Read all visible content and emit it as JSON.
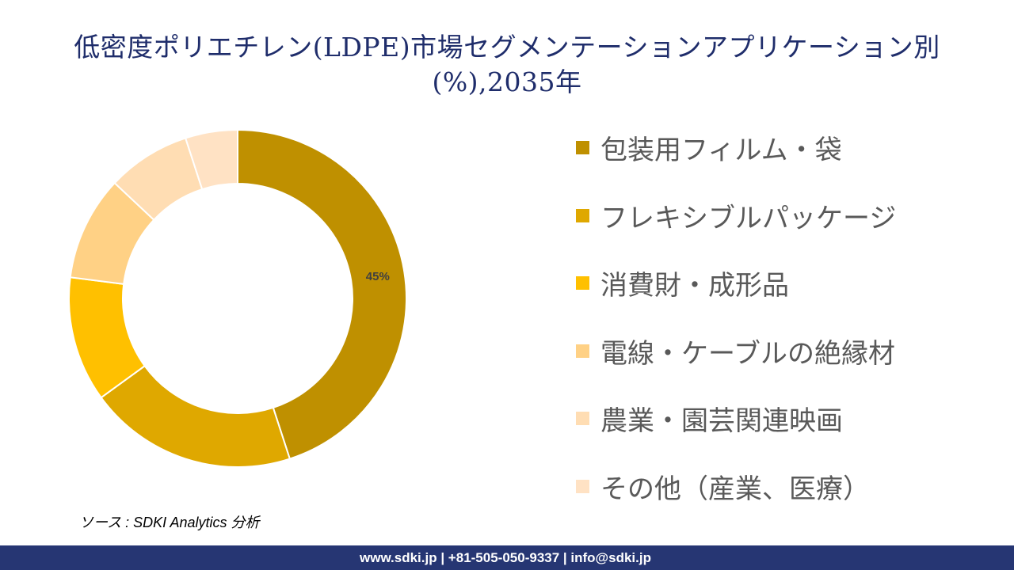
{
  "title": "低密度ポリエチレン(LDPE)市場セグメンテーションアプリケーション別(%),2035年",
  "title_line1": "低密度ポリエチレン(LDPE)市場セグメンテーションアプリケーション別",
  "title_line2": "(%),2035年",
  "chart_data": {
    "type": "pie",
    "donut": true,
    "categories": [
      "包装用フィルム・袋",
      "フレキシブルパッケージ",
      "消費財・成形品",
      "電線・ケーブルの絶縁材",
      "農業・園芸関連映画",
      "その他（産業、医療）"
    ],
    "values": [
      45,
      20,
      12,
      10,
      8,
      5
    ],
    "colors": [
      "#BF9000",
      "#DFA800",
      "#FFC000",
      "#FFD185",
      "#FFDDB3",
      "#FFE2C4"
    ],
    "data_labels": [
      "45%",
      "",
      "",
      "",
      "",
      ""
    ],
    "legend_position": "right"
  },
  "source": "ソース : SDKI Analytics 分析",
  "footer": "www.sdki.jp | +81-505-050-9337 | info@sdki.jp"
}
